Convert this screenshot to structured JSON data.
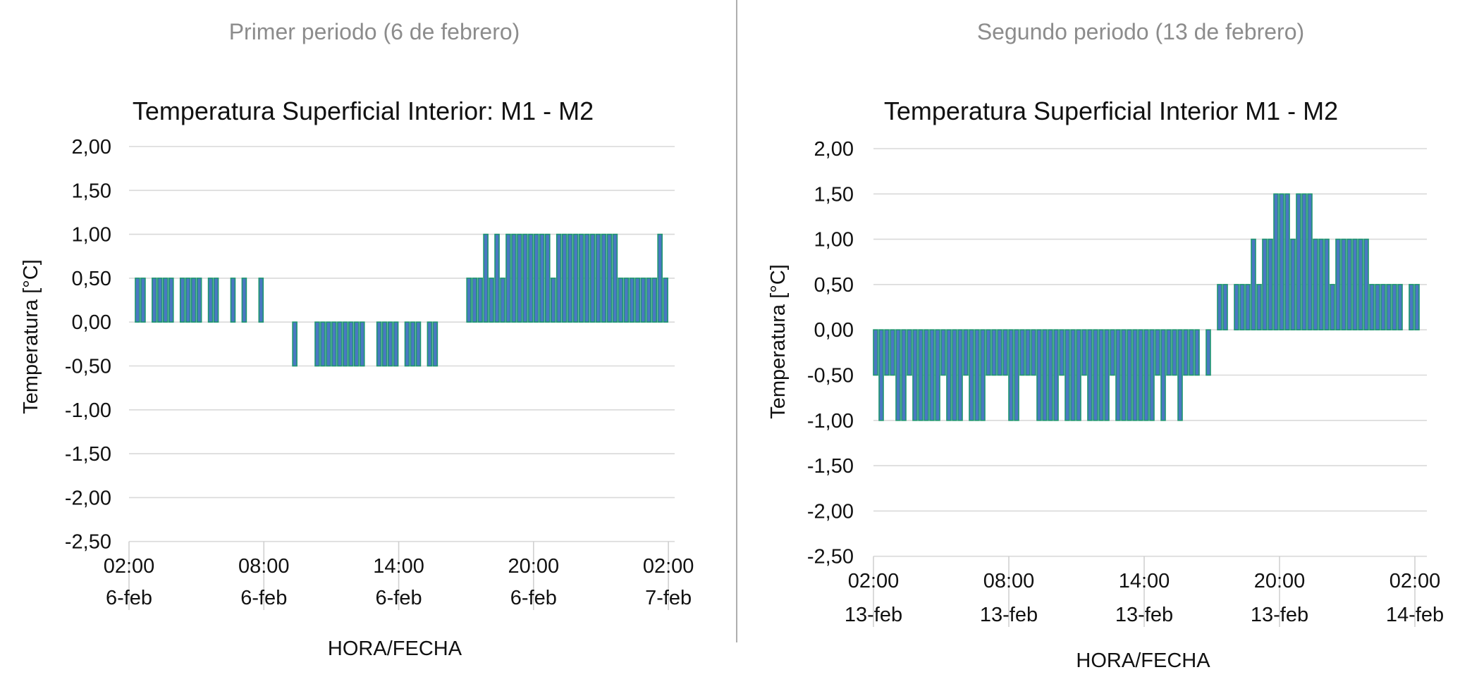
{
  "colors": {
    "bar_fill": "#4a78c2",
    "bar_edge": "#1e9670",
    "grid": "#d9d9d9",
    "header": "#8c8c8c"
  },
  "chart_data": [
    {
      "type": "bar",
      "header": "Primer periodo (6 de febrero)",
      "title": "Temperatura Superficial Interior: M1 - M2",
      "xlabel": "HORA/FECHA",
      "ylabel": "Temperatura [°C]",
      "ylim": [
        -2.5,
        2.0
      ],
      "yticks": [
        "2,00",
        "1,50",
        "1,00",
        "0,50",
        "0,00",
        "-0,50",
        "-1,00",
        "-1,50",
        "-2,00",
        "-2,50"
      ],
      "xticks": [
        {
          "time": "02:00",
          "date": "6-feb"
        },
        {
          "time": "08:00",
          "date": "6-feb"
        },
        {
          "time": "14:00",
          "date": "6-feb"
        },
        {
          "time": "20:00",
          "date": "6-feb"
        },
        {
          "time": "02:00",
          "date": "7-feb"
        }
      ],
      "grid": true,
      "x_start": "02:00",
      "interval_minutes": 15,
      "values": [
        null,
        0.5,
        0.5,
        null,
        0.5,
        0.5,
        0.5,
        0.5,
        null,
        0.5,
        0.5,
        0.5,
        0.5,
        null,
        0.5,
        0.5,
        null,
        null,
        0.5,
        null,
        0.5,
        null,
        null,
        0.5,
        null,
        null,
        null,
        null,
        null,
        -0.5,
        null,
        null,
        null,
        -0.5,
        -0.5,
        -0.5,
        -0.5,
        -0.5,
        -0.5,
        -0.5,
        -0.5,
        -0.5,
        null,
        null,
        -0.5,
        -0.5,
        -0.5,
        -0.5,
        null,
        -0.5,
        -0.5,
        -0.5,
        null,
        -0.5,
        -0.5,
        null,
        null,
        null,
        null,
        null,
        0.5,
        0.5,
        0.5,
        1,
        0.5,
        1,
        0.5,
        1,
        1,
        1,
        1,
        1,
        1,
        1,
        1,
        0.5,
        1,
        1,
        1,
        1,
        1,
        1,
        1,
        1,
        1,
        1,
        1,
        0.5,
        0.5,
        0.5,
        0.5,
        0.5,
        0.5,
        0.5,
        1,
        0.5
      ]
    },
    {
      "type": "bar",
      "header": "Segundo periodo (13 de febrero)",
      "title": "Temperatura Superficial Interior M1 - M2",
      "xlabel": "HORA/FECHA",
      "ylabel": "Temperatura [°C]",
      "ylim": [
        -2.5,
        2.0
      ],
      "yticks": [
        "2,00",
        "1,50",
        "1,00",
        "0,50",
        "0,00",
        "-0,50",
        "-1,00",
        "-1,50",
        "-2,00",
        "-2,50"
      ],
      "xticks": [
        {
          "time": "02:00",
          "date": "13-feb"
        },
        {
          "time": "08:00",
          "date": "13-feb"
        },
        {
          "time": "14:00",
          "date": "13-feb"
        },
        {
          "time": "20:00",
          "date": "13-feb"
        },
        {
          "time": "02:00",
          "date": "14-feb"
        }
      ],
      "grid": true,
      "x_start": "02:00",
      "interval_minutes": 15,
      "values": [
        -0.5,
        -1,
        -0.5,
        -0.5,
        -1,
        -1,
        -0.5,
        -1,
        -1,
        -1,
        -1,
        -1,
        -0.5,
        -1,
        -1,
        -1,
        -0.5,
        -1,
        -1,
        -1,
        -0.5,
        -0.5,
        -0.5,
        -0.5,
        -1,
        -1,
        -0.5,
        -0.5,
        -0.5,
        -1,
        -1,
        -1,
        -1,
        -0.5,
        -1,
        -1,
        -1,
        -0.5,
        -1,
        -1,
        -1,
        -1,
        -0.5,
        -1,
        -1,
        -1,
        -1,
        -1,
        -1,
        -1,
        -0.5,
        -1,
        -0.5,
        -0.5,
        -1,
        -0.5,
        -0.5,
        -0.5,
        null,
        -0.5,
        null,
        0.5,
        0.5,
        null,
        0.5,
        0.5,
        0.5,
        1,
        0.5,
        1,
        1,
        1.5,
        1.5,
        1.5,
        1,
        1.5,
        1.5,
        1.5,
        1,
        1,
        1,
        0.5,
        1,
        1,
        1,
        1,
        1,
        1,
        0.5,
        0.5,
        0.5,
        0.5,
        0.5,
        0.5,
        null,
        0.5,
        0.5
      ]
    }
  ]
}
